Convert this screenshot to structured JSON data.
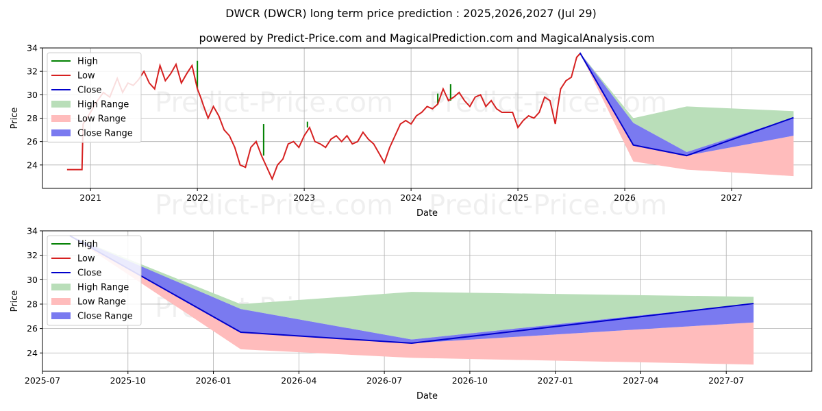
{
  "titles": {
    "main": "DWCR (DWCR) long term price prediction : 2025,2026,2027 (Jul 29)",
    "sub": "powered by Predict-Price.com and MagicalPrediction.com and MagicalAnalysis.com"
  },
  "watermark": "Predict-Price.com",
  "legend": {
    "high": "High",
    "low": "Low",
    "close": "Close",
    "high_range": "High Range",
    "low_range": "Low Range",
    "close_range": "Close Range"
  },
  "colors": {
    "high": "#008000",
    "low": "#d62020",
    "close": "#0000cc",
    "high_range": "#b9deb9",
    "low_range": "#ffbcbc",
    "close_range": "#7a7af0"
  },
  "chart_data": [
    {
      "type": "line",
      "title": "DWCR (DWCR) long term price prediction : 2025,2026,2027 (Jul 29)",
      "xlabel": "Date",
      "ylabel": "Price",
      "xlim": [
        2020.55,
        2027.75
      ],
      "ylim": [
        22.0,
        34.0
      ],
      "xticks": [
        2021,
        2022,
        2023,
        2024,
        2025,
        2026,
        2027
      ],
      "xtick_labels": [
        "2021",
        "2022",
        "2023",
        "2024",
        "2025",
        "2026",
        "2027"
      ],
      "yticks": [
        24,
        26,
        28,
        30,
        32,
        34
      ],
      "ytick_labels": [
        "24",
        "26",
        "28",
        "30",
        "32",
        "34"
      ],
      "legend_position": "top-left",
      "series": [
        {
          "name": "Low",
          "x": [
            2020.78,
            2020.92,
            2020.93,
            2021.0,
            2021.05,
            2021.12,
            2021.18,
            2021.25,
            2021.3,
            2021.35,
            2021.4,
            2021.45,
            2021.5,
            2021.55,
            2021.6,
            2021.65,
            2021.7,
            2021.75,
            2021.8,
            2021.85,
            2021.9,
            2021.95,
            2022.0,
            2022.03,
            2022.06,
            2022.1,
            2022.15,
            2022.2,
            2022.25,
            2022.3,
            2022.35,
            2022.4,
            2022.45,
            2022.5,
            2022.55,
            2022.6,
            2022.65,
            2022.7,
            2022.75,
            2022.8,
            2022.85,
            2022.9,
            2022.95,
            2023.0,
            2023.05,
            2023.1,
            2023.15,
            2023.2,
            2023.25,
            2023.3,
            2023.35,
            2023.4,
            2023.45,
            2023.5,
            2023.55,
            2023.6,
            2023.65,
            2023.7,
            2023.75,
            2023.8,
            2023.85,
            2023.9,
            2023.95,
            2024.0,
            2024.05,
            2024.1,
            2024.15,
            2024.2,
            2024.25,
            2024.3,
            2024.35,
            2024.4,
            2024.45,
            2024.5,
            2024.55,
            2024.6,
            2024.65,
            2024.7,
            2024.75,
            2024.8,
            2024.85,
            2024.9,
            2024.95,
            2025.0,
            2025.05,
            2025.1,
            2025.15,
            2025.2,
            2025.25,
            2025.3,
            2025.35,
            2025.37,
            2025.4,
            2025.45,
            2025.5,
            2025.55,
            2025.58
          ],
          "values": [
            23.6,
            23.6,
            27.5,
            28.5,
            29.3,
            30.2,
            29.8,
            31.4,
            30.2,
            31.0,
            30.8,
            31.3,
            32.0,
            31.0,
            30.5,
            32.5,
            31.2,
            31.8,
            32.6,
            31.0,
            31.8,
            32.5,
            30.5,
            29.8,
            29.0,
            28.0,
            29.0,
            28.2,
            27.0,
            26.5,
            25.5,
            24.0,
            23.8,
            25.5,
            26.0,
            24.8,
            23.8,
            22.8,
            24.0,
            24.5,
            25.8,
            26.0,
            25.5,
            26.5,
            27.2,
            26.0,
            25.8,
            25.5,
            26.2,
            26.5,
            26.0,
            26.5,
            25.8,
            26.0,
            26.8,
            26.2,
            25.8,
            25.0,
            24.2,
            25.5,
            26.5,
            27.5,
            27.8,
            27.5,
            28.2,
            28.5,
            29.0,
            28.8,
            29.2,
            30.5,
            29.5,
            29.8,
            30.2,
            29.5,
            29.0,
            29.8,
            30.0,
            29.0,
            29.5,
            28.8,
            28.5,
            28.5,
            28.5,
            27.2,
            27.8,
            28.2,
            28.0,
            28.5,
            29.8,
            29.5,
            27.5,
            28.8,
            30.5,
            31.2,
            31.5,
            33.2,
            33.5
          ]
        },
        {
          "name": "Close",
          "x": [
            2025.58,
            2026.08,
            2026.58,
            2027.58
          ],
          "values": [
            33.6,
            25.7,
            24.8,
            28.05
          ]
        },
        {
          "name": "High Range",
          "x": [
            2025.58,
            2026.08,
            2026.58,
            2027.58
          ],
          "upper": [
            33.6,
            28.0,
            29.0,
            28.6
          ],
          "lower": [
            33.6,
            27.6,
            25.1,
            28.05
          ]
        },
        {
          "name": "Low Range",
          "x": [
            2025.58,
            2026.08,
            2026.58,
            2027.58
          ],
          "upper": [
            33.6,
            25.7,
            24.8,
            26.5
          ],
          "lower": [
            33.6,
            24.3,
            23.6,
            23.05
          ]
        },
        {
          "name": "Close Range",
          "x": [
            2025.58,
            2026.08,
            2026.58,
            2027.58
          ],
          "upper": [
            33.6,
            27.6,
            25.1,
            28.05
          ],
          "lower": [
            33.6,
            25.7,
            24.8,
            26.5
          ]
        }
      ],
      "high_spikes": [
        {
          "x": 2022.0,
          "y": 32.9
        },
        {
          "x": 2022.62,
          "y": 27.5
        },
        {
          "x": 2023.03,
          "y": 27.7
        },
        {
          "x": 2024.25,
          "y": 30.1
        },
        {
          "x": 2024.37,
          "y": 30.9
        }
      ]
    },
    {
      "type": "line",
      "title": "",
      "xlabel": "Date",
      "ylabel": "Price",
      "xlim": [
        2025.5,
        2027.75
      ],
      "ylim": [
        22.5,
        34.0
      ],
      "xticks": [
        2025.5,
        2025.75,
        2026.0,
        2026.25,
        2026.5,
        2026.75,
        2027.0,
        2027.25,
        2027.5
      ],
      "xtick_labels": [
        "2025-07",
        "2025-10",
        "2026-01",
        "2026-04",
        "2026-07",
        "2026-10",
        "2027-01",
        "2027-04",
        "2027-07"
      ],
      "yticks": [
        24,
        26,
        28,
        30,
        32,
        34
      ],
      "ytick_labels": [
        "24",
        "26",
        "28",
        "30",
        "32",
        "34"
      ],
      "legend_position": "top-left",
      "series": [
        {
          "name": "Close",
          "x": [
            2025.58,
            2026.08,
            2026.58,
            2027.58
          ],
          "values": [
            33.6,
            25.7,
            24.8,
            28.05
          ]
        },
        {
          "name": "High Range",
          "x": [
            2025.58,
            2026.08,
            2026.58,
            2027.58
          ],
          "upper": [
            33.6,
            28.0,
            29.0,
            28.6
          ],
          "lower": [
            33.6,
            27.6,
            25.1,
            28.05
          ]
        },
        {
          "name": "Low Range",
          "x": [
            2025.58,
            2026.08,
            2026.58,
            2027.58
          ],
          "upper": [
            33.6,
            25.7,
            24.8,
            26.5
          ],
          "lower": [
            33.6,
            24.3,
            23.6,
            23.05
          ]
        },
        {
          "name": "Close Range",
          "x": [
            2025.58,
            2026.08,
            2026.58,
            2027.58
          ],
          "upper": [
            33.6,
            27.6,
            25.1,
            28.05
          ],
          "lower": [
            33.6,
            25.7,
            24.8,
            26.5
          ]
        }
      ]
    }
  ]
}
